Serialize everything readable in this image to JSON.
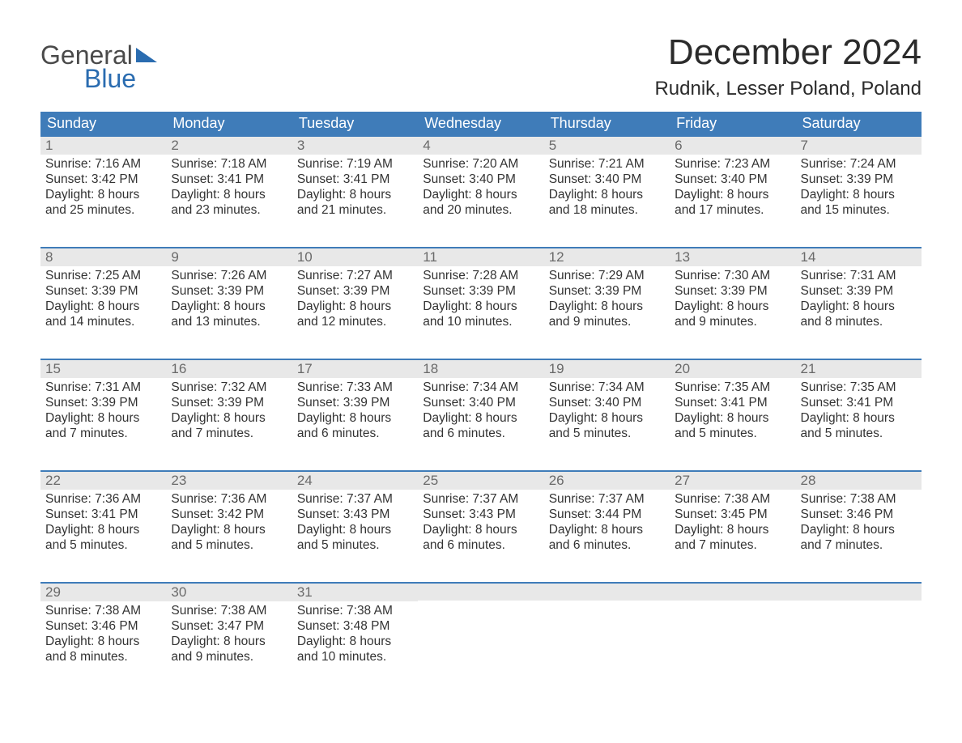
{
  "logo": {
    "line1": "General",
    "line2": "Blue"
  },
  "title": "December 2024",
  "location": "Rudnik, Lesser Poland, Poland",
  "colors": {
    "header_bg": "#3f7cb9",
    "header_text": "#ffffff",
    "daynum_bg": "#e8e8e8",
    "daynum_text": "#6a6a6a",
    "body_text": "#333333",
    "row_border": "#3f7cb9",
    "logo_gray": "#4a4a4a",
    "logo_blue": "#2a6cb0"
  },
  "weekdays": [
    "Sunday",
    "Monday",
    "Tuesday",
    "Wednesday",
    "Thursday",
    "Friday",
    "Saturday"
  ],
  "days": [
    {
      "n": 1,
      "sunrise": "7:16 AM",
      "sunset": "3:42 PM",
      "daylight": "8 hours and 25 minutes."
    },
    {
      "n": 2,
      "sunrise": "7:18 AM",
      "sunset": "3:41 PM",
      "daylight": "8 hours and 23 minutes."
    },
    {
      "n": 3,
      "sunrise": "7:19 AM",
      "sunset": "3:41 PM",
      "daylight": "8 hours and 21 minutes."
    },
    {
      "n": 4,
      "sunrise": "7:20 AM",
      "sunset": "3:40 PM",
      "daylight": "8 hours and 20 minutes."
    },
    {
      "n": 5,
      "sunrise": "7:21 AM",
      "sunset": "3:40 PM",
      "daylight": "8 hours and 18 minutes."
    },
    {
      "n": 6,
      "sunrise": "7:23 AM",
      "sunset": "3:40 PM",
      "daylight": "8 hours and 17 minutes."
    },
    {
      "n": 7,
      "sunrise": "7:24 AM",
      "sunset": "3:39 PM",
      "daylight": "8 hours and 15 minutes."
    },
    {
      "n": 8,
      "sunrise": "7:25 AM",
      "sunset": "3:39 PM",
      "daylight": "8 hours and 14 minutes."
    },
    {
      "n": 9,
      "sunrise": "7:26 AM",
      "sunset": "3:39 PM",
      "daylight": "8 hours and 13 minutes."
    },
    {
      "n": 10,
      "sunrise": "7:27 AM",
      "sunset": "3:39 PM",
      "daylight": "8 hours and 12 minutes."
    },
    {
      "n": 11,
      "sunrise": "7:28 AM",
      "sunset": "3:39 PM",
      "daylight": "8 hours and 10 minutes."
    },
    {
      "n": 12,
      "sunrise": "7:29 AM",
      "sunset": "3:39 PM",
      "daylight": "8 hours and 9 minutes."
    },
    {
      "n": 13,
      "sunrise": "7:30 AM",
      "sunset": "3:39 PM",
      "daylight": "8 hours and 9 minutes."
    },
    {
      "n": 14,
      "sunrise": "7:31 AM",
      "sunset": "3:39 PM",
      "daylight": "8 hours and 8 minutes."
    },
    {
      "n": 15,
      "sunrise": "7:31 AM",
      "sunset": "3:39 PM",
      "daylight": "8 hours and 7 minutes."
    },
    {
      "n": 16,
      "sunrise": "7:32 AM",
      "sunset": "3:39 PM",
      "daylight": "8 hours and 7 minutes."
    },
    {
      "n": 17,
      "sunrise": "7:33 AM",
      "sunset": "3:39 PM",
      "daylight": "8 hours and 6 minutes."
    },
    {
      "n": 18,
      "sunrise": "7:34 AM",
      "sunset": "3:40 PM",
      "daylight": "8 hours and 6 minutes."
    },
    {
      "n": 19,
      "sunrise": "7:34 AM",
      "sunset": "3:40 PM",
      "daylight": "8 hours and 5 minutes."
    },
    {
      "n": 20,
      "sunrise": "7:35 AM",
      "sunset": "3:41 PM",
      "daylight": "8 hours and 5 minutes."
    },
    {
      "n": 21,
      "sunrise": "7:35 AM",
      "sunset": "3:41 PM",
      "daylight": "8 hours and 5 minutes."
    },
    {
      "n": 22,
      "sunrise": "7:36 AM",
      "sunset": "3:41 PM",
      "daylight": "8 hours and 5 minutes."
    },
    {
      "n": 23,
      "sunrise": "7:36 AM",
      "sunset": "3:42 PM",
      "daylight": "8 hours and 5 minutes."
    },
    {
      "n": 24,
      "sunrise": "7:37 AM",
      "sunset": "3:43 PM",
      "daylight": "8 hours and 5 minutes."
    },
    {
      "n": 25,
      "sunrise": "7:37 AM",
      "sunset": "3:43 PM",
      "daylight": "8 hours and 6 minutes."
    },
    {
      "n": 26,
      "sunrise": "7:37 AM",
      "sunset": "3:44 PM",
      "daylight": "8 hours and 6 minutes."
    },
    {
      "n": 27,
      "sunrise": "7:38 AM",
      "sunset": "3:45 PM",
      "daylight": "8 hours and 7 minutes."
    },
    {
      "n": 28,
      "sunrise": "7:38 AM",
      "sunset": "3:46 PM",
      "daylight": "8 hours and 7 minutes."
    },
    {
      "n": 29,
      "sunrise": "7:38 AM",
      "sunset": "3:46 PM",
      "daylight": "8 hours and 8 minutes."
    },
    {
      "n": 30,
      "sunrise": "7:38 AM",
      "sunset": "3:47 PM",
      "daylight": "8 hours and 9 minutes."
    },
    {
      "n": 31,
      "sunrise": "7:38 AM",
      "sunset": "3:48 PM",
      "daylight": "8 hours and 10 minutes."
    }
  ],
  "labels": {
    "sunrise": "Sunrise:",
    "sunset": "Sunset:",
    "daylight": "Daylight:"
  },
  "layout": {
    "first_weekday_index": 0,
    "weeks": 5,
    "cols": 7
  }
}
